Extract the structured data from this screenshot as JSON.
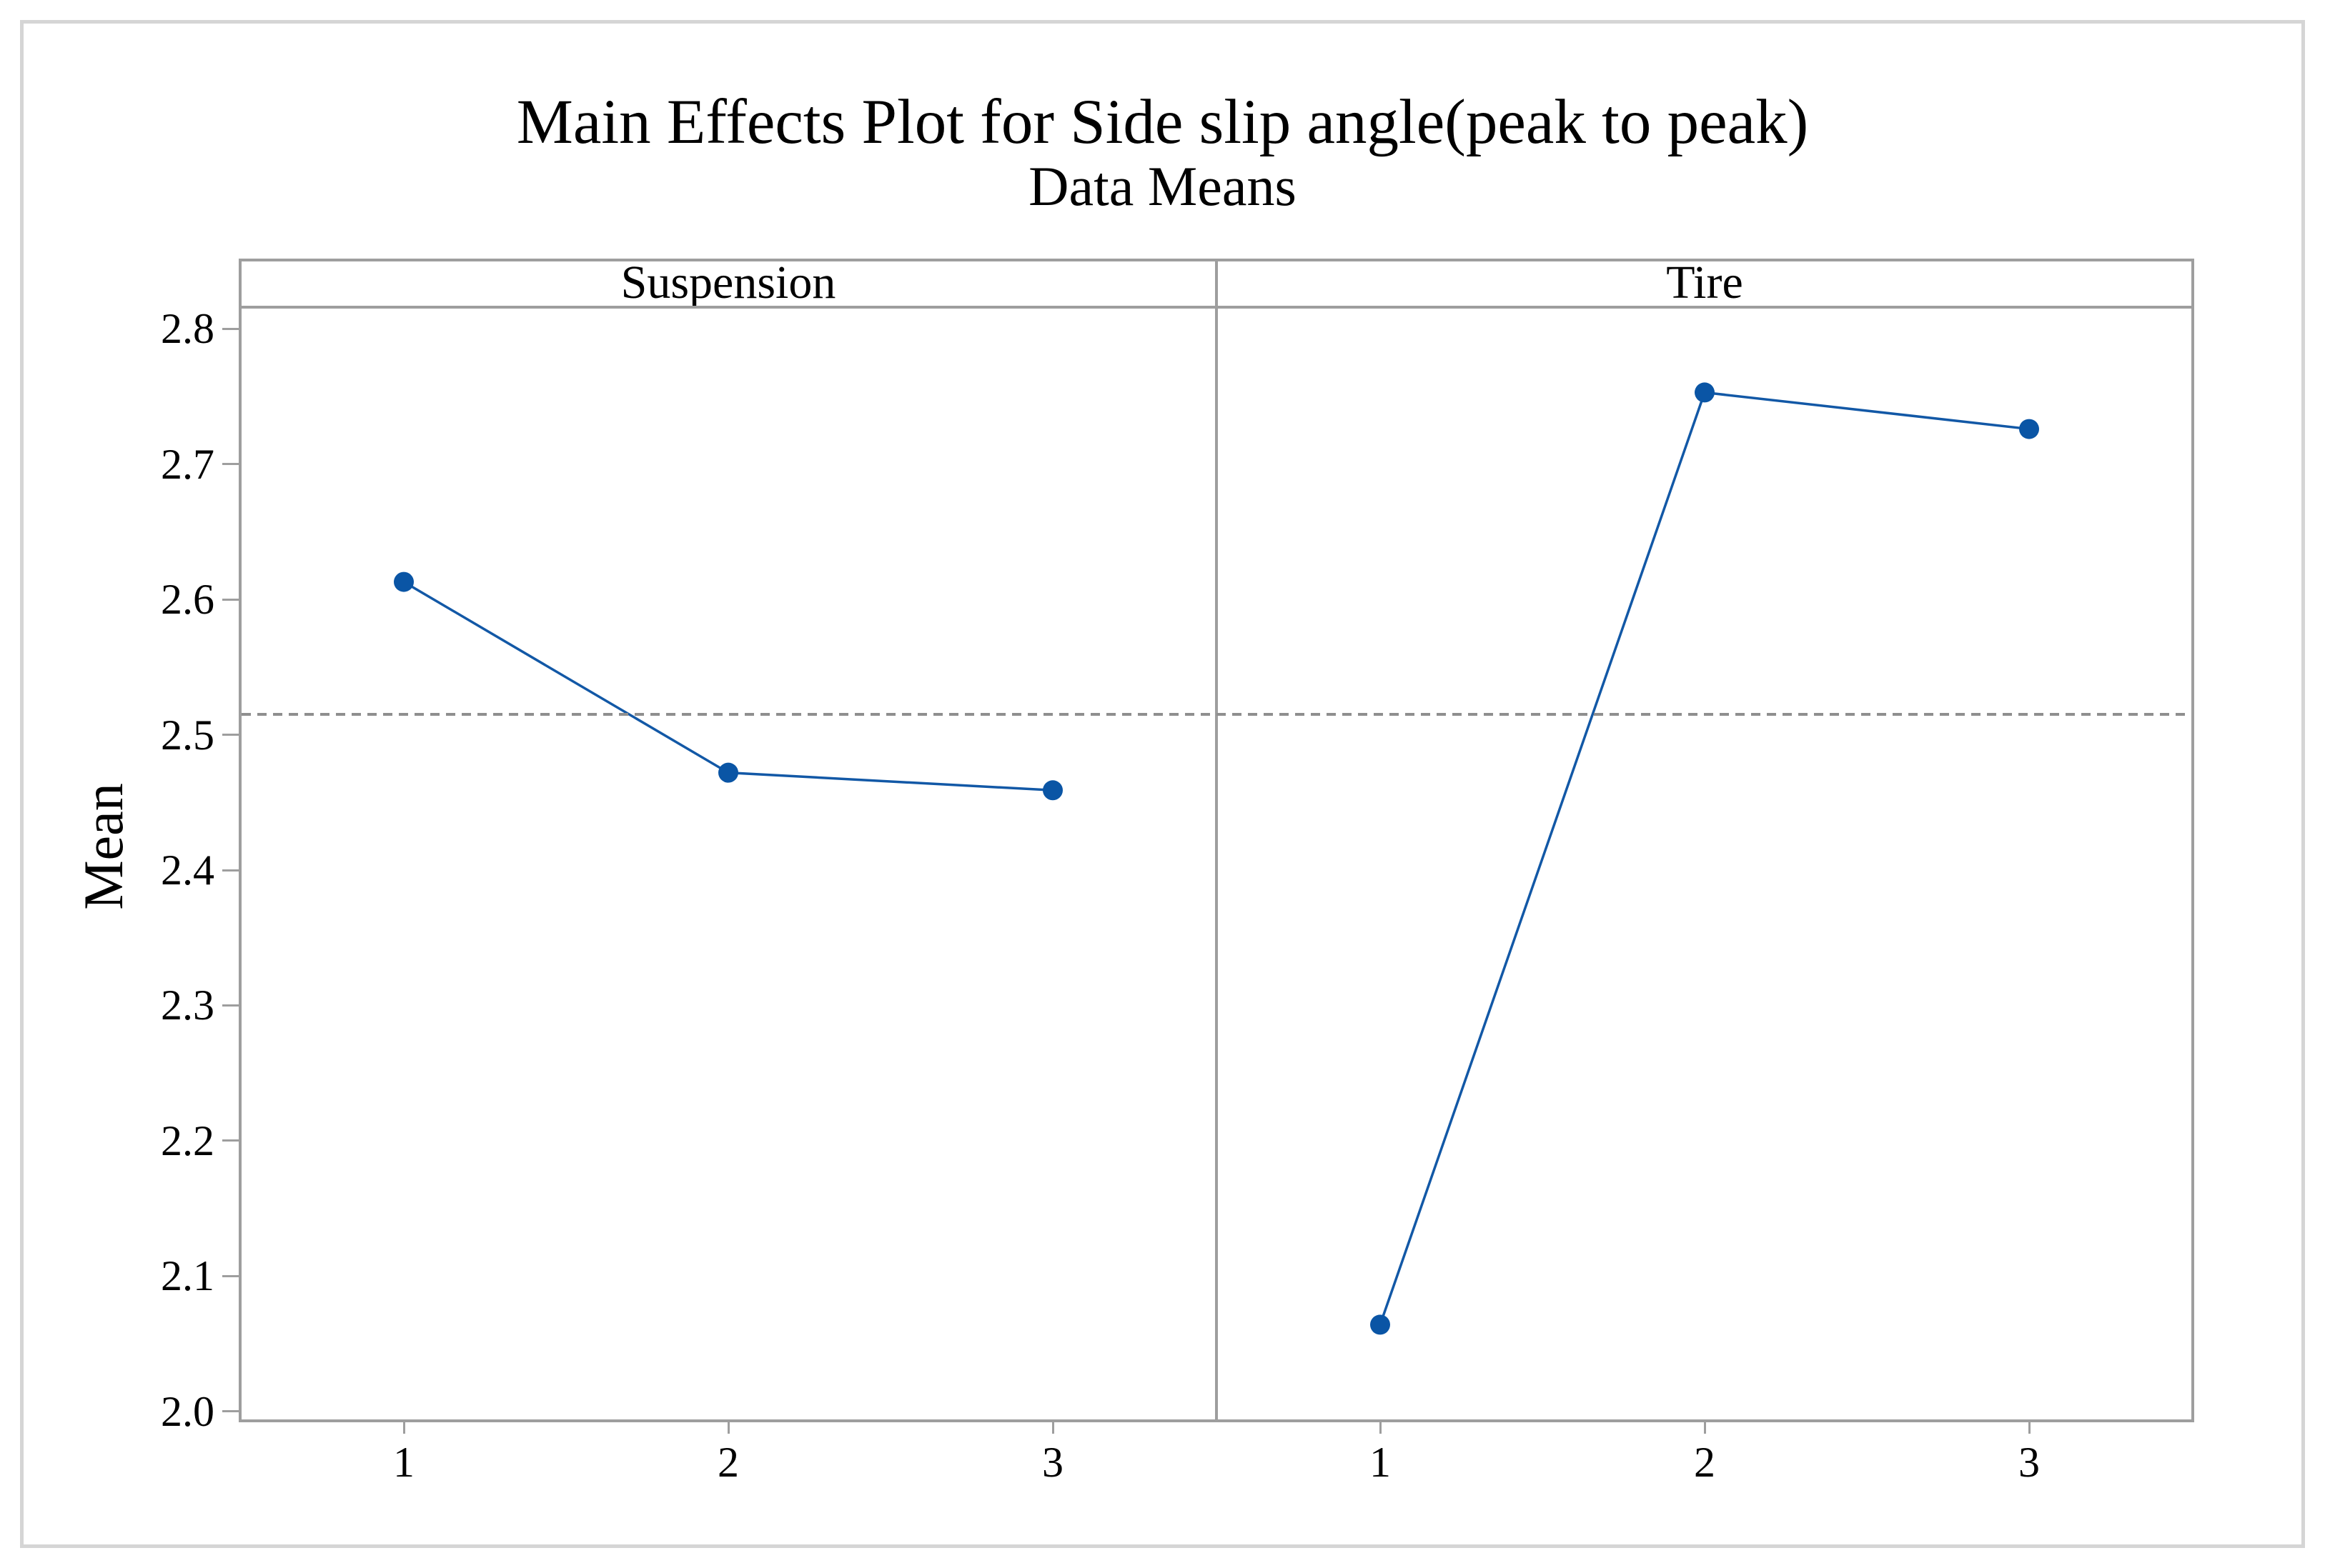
{
  "chart_data": {
    "type": "line",
    "title": "Main Effects Plot for Side slip angle(peak to peak)",
    "subtitle": "Data Means",
    "ylabel": "Mean",
    "ylim": [
      1.994,
      2.815
    ],
    "yticks": [
      "2.0",
      "2.1",
      "2.2",
      "2.3",
      "2.4",
      "2.5",
      "2.6",
      "2.7",
      "2.8"
    ],
    "grand_mean": 2.515,
    "reference_line_style": "dashed",
    "panels": [
      {
        "label": "Suspension",
        "categories": [
          "1",
          "2",
          "3"
        ],
        "values": [
          2.613,
          2.472,
          2.459
        ]
      },
      {
        "label": "Tire",
        "categories": [
          "1",
          "2",
          "3"
        ],
        "values": [
          2.064,
          2.753,
          2.726
        ]
      }
    ],
    "point_color": "#0a55a5",
    "line_color": "#1258a6",
    "grid": false,
    "legend": false
  }
}
